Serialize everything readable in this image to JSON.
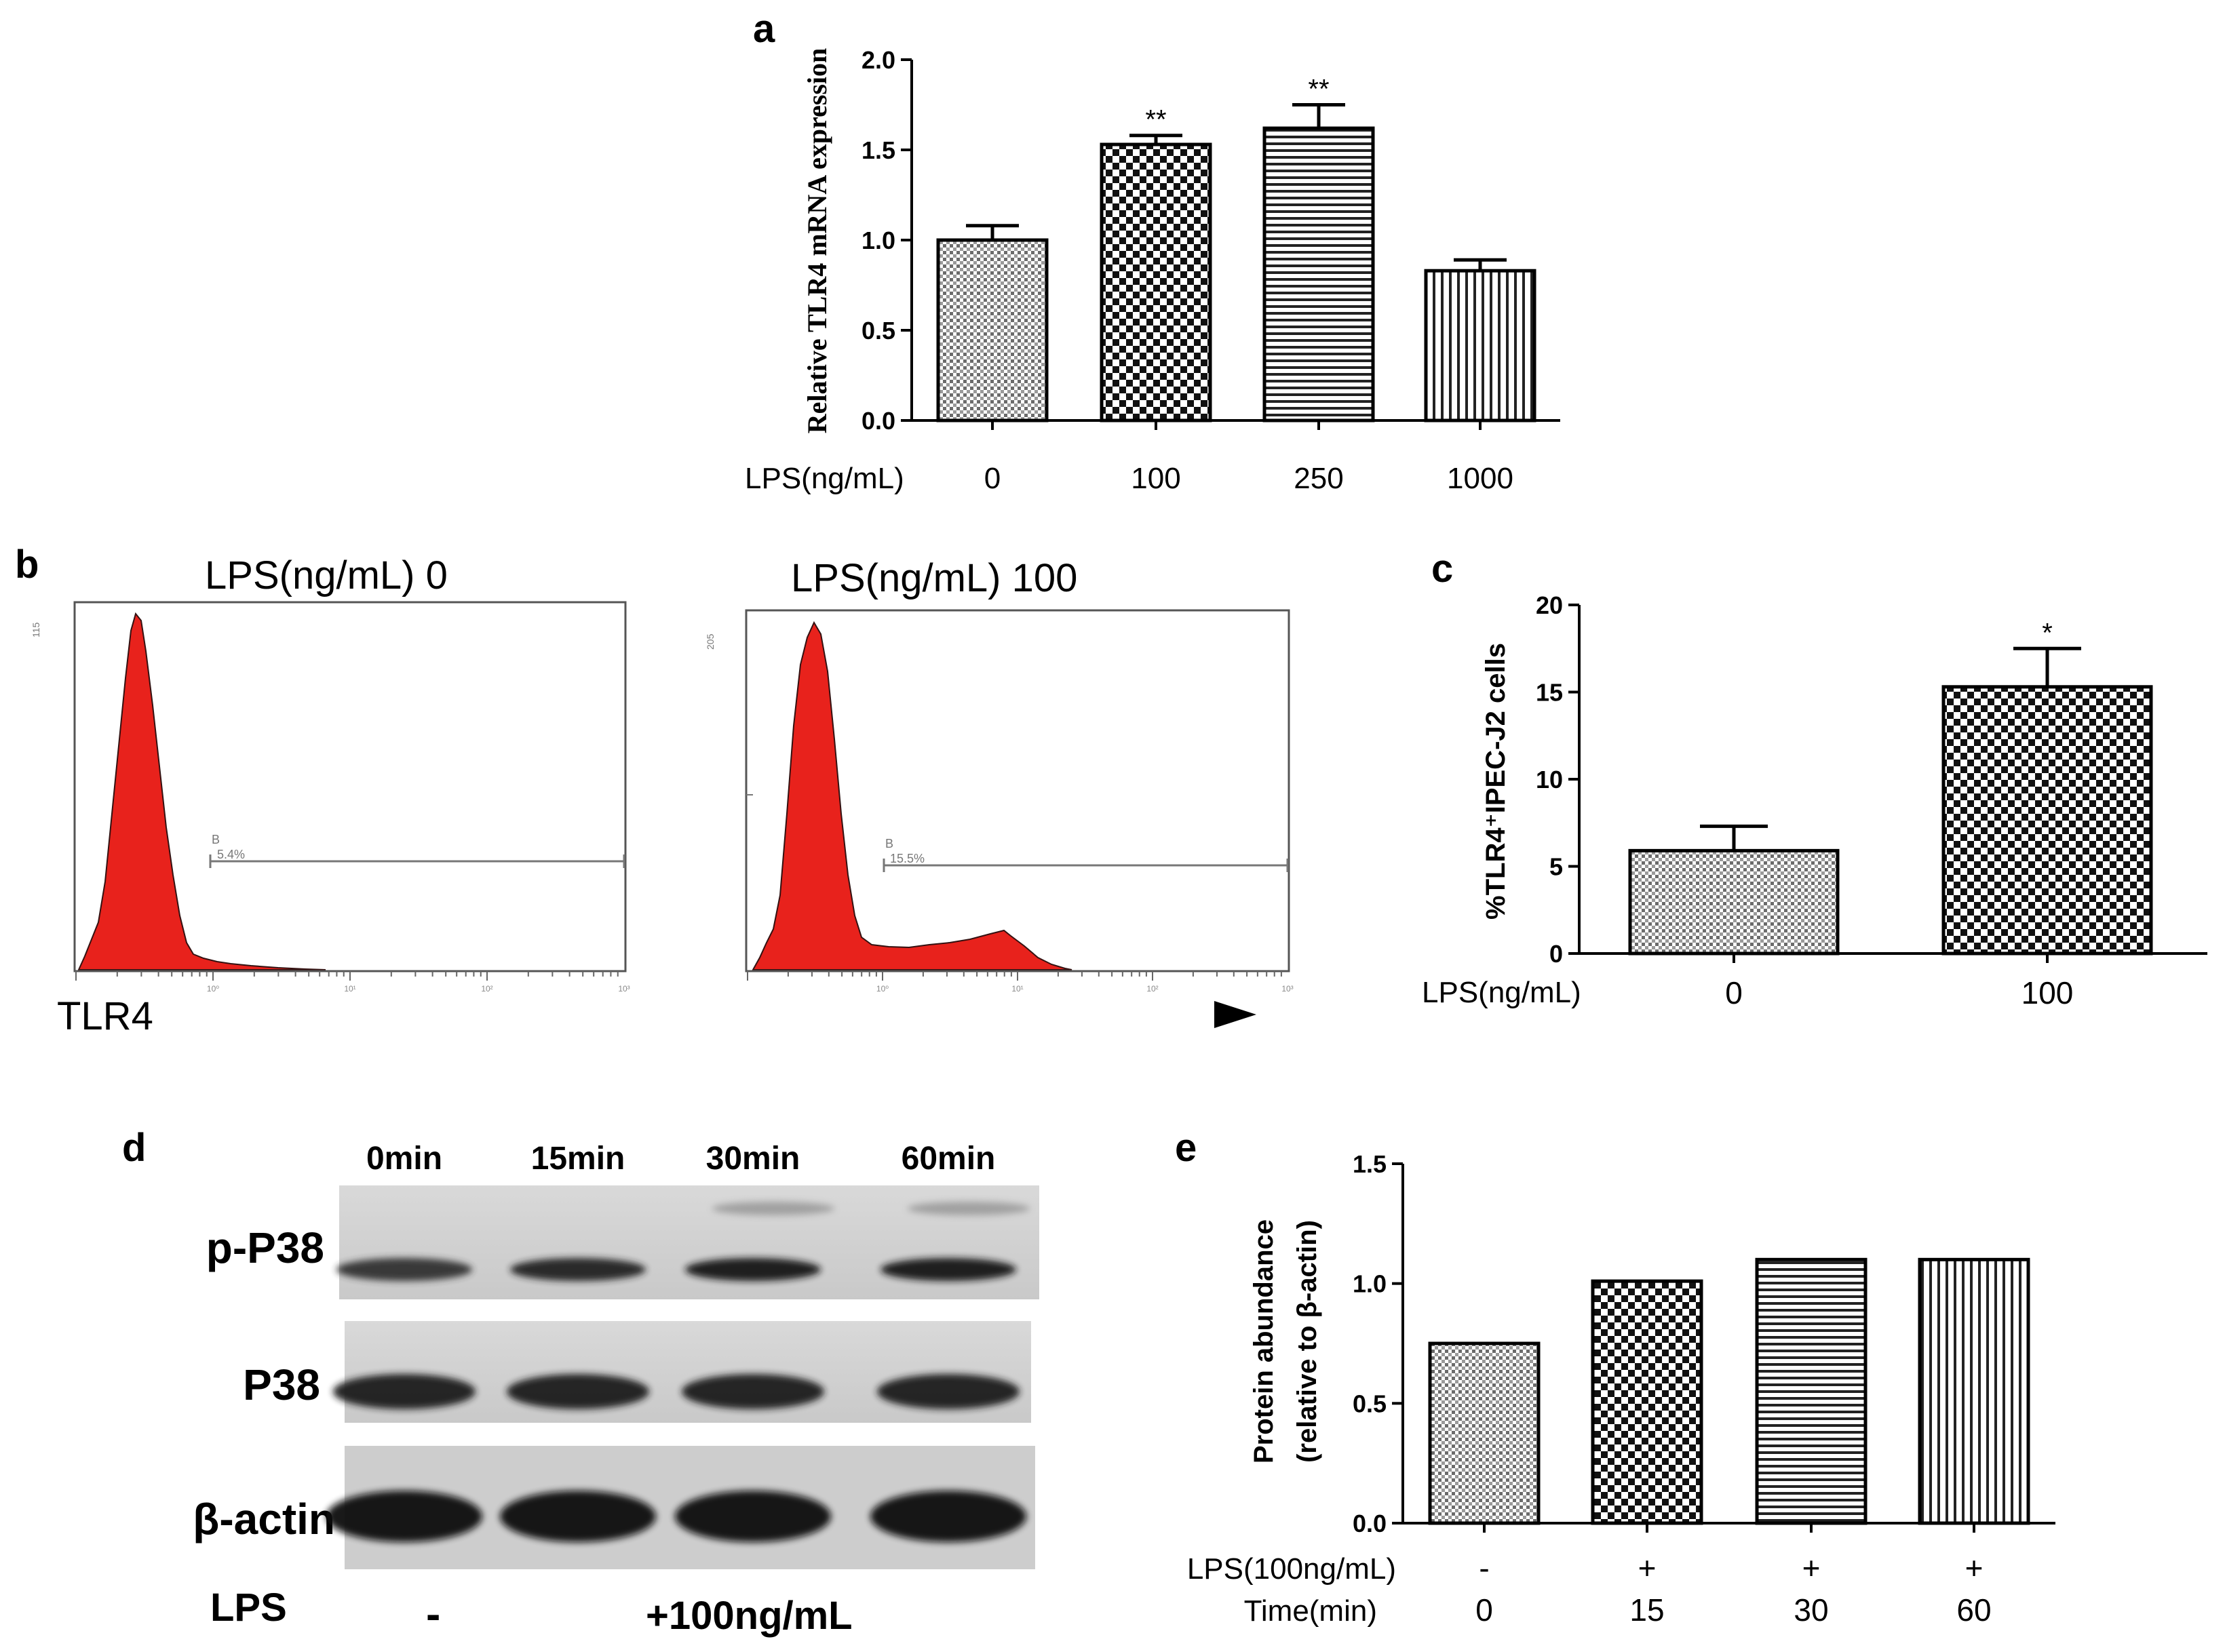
{
  "colors": {
    "axis": "#000000",
    "histogram_fill": "#e8221c",
    "background": "#ffffff",
    "blot_bg": "#d2d2d2",
    "band": "#151515"
  },
  "chart_data": [
    {
      "id": "a",
      "panel_label": "a",
      "type": "bar",
      "ylabel": "Relative TLR4 mRNA expression",
      "xlabel": "LPS(ng/mL)",
      "categories": [
        "0",
        "100",
        "250",
        "1000"
      ],
      "values": [
        1.0,
        1.53,
        1.62,
        0.83
      ],
      "errors": [
        0.08,
        0.05,
        0.13,
        0.06
      ],
      "significance": [
        "",
        "**",
        "**",
        ""
      ],
      "yticks": [
        "0.0",
        "0.5",
        "1.0",
        "1.5",
        "2.0"
      ],
      "ylim": [
        0,
        2.0
      ],
      "patterns": [
        "dots",
        "checker",
        "hlines",
        "vlines"
      ]
    },
    {
      "id": "b",
      "panel_label": "b",
      "type": "histogram",
      "xlabel": "TLR4",
      "plots": [
        {
          "title": "LPS(ng/mL)  0",
          "gate_label": "B",
          "gate_value": "5.4%",
          "ymax_label": "115"
        },
        {
          "title": "LPS(ng/mL)  100",
          "gate_label": "B",
          "gate_value": "15.5%",
          "ymax_label": "205"
        }
      ],
      "xticks": [
        "10⁰",
        "10¹",
        "10²",
        "10³"
      ]
    },
    {
      "id": "c",
      "panel_label": "c",
      "type": "bar",
      "ylabel": "%TLR4⁺IPEC-J2 cells",
      "xlabel": "LPS(ng/mL)",
      "categories": [
        "0",
        "100"
      ],
      "values": [
        5.9,
        15.3
      ],
      "errors": [
        1.4,
        2.2
      ],
      "significance": [
        "",
        "*"
      ],
      "yticks": [
        "0",
        "5",
        "10",
        "15",
        "20"
      ],
      "ylim": [
        0,
        20
      ],
      "patterns": [
        "dots",
        "checker"
      ]
    },
    {
      "id": "e",
      "panel_label": "e",
      "type": "bar",
      "ylabel_line1": "Protein abundance",
      "ylabel_line2": "(relative to β-actin)",
      "xlabel_row1": "LPS(100ng/mL)",
      "xlabel_row2": "Time(min)",
      "row1": [
        "-",
        "+",
        "+",
        "+"
      ],
      "categories": [
        "0",
        "15",
        "30",
        "60"
      ],
      "values": [
        0.75,
        1.01,
        1.1,
        1.1
      ],
      "yticks": [
        "0.0",
        "0.5",
        "1.0",
        "1.5"
      ],
      "ylim": [
        0,
        1.5
      ],
      "patterns": [
        "dots",
        "checker",
        "hlines",
        "vlines"
      ]
    }
  ],
  "blot": {
    "panel_label": "d",
    "lanes": [
      "0min",
      "15min",
      "30min",
      "60min"
    ],
    "rows": [
      "p-P38",
      "P38",
      "β-actin"
    ],
    "lps_label": "LPS",
    "lps_minus": "-",
    "lps_plus": "+100ng/mL",
    "band_intensity": {
      "p-P38": [
        0.55,
        0.75,
        0.95,
        0.95
      ],
      "P38": [
        0.85,
        0.85,
        0.85,
        0.8
      ],
      "β-actin": [
        1.0,
        1.0,
        1.0,
        1.0
      ]
    }
  }
}
